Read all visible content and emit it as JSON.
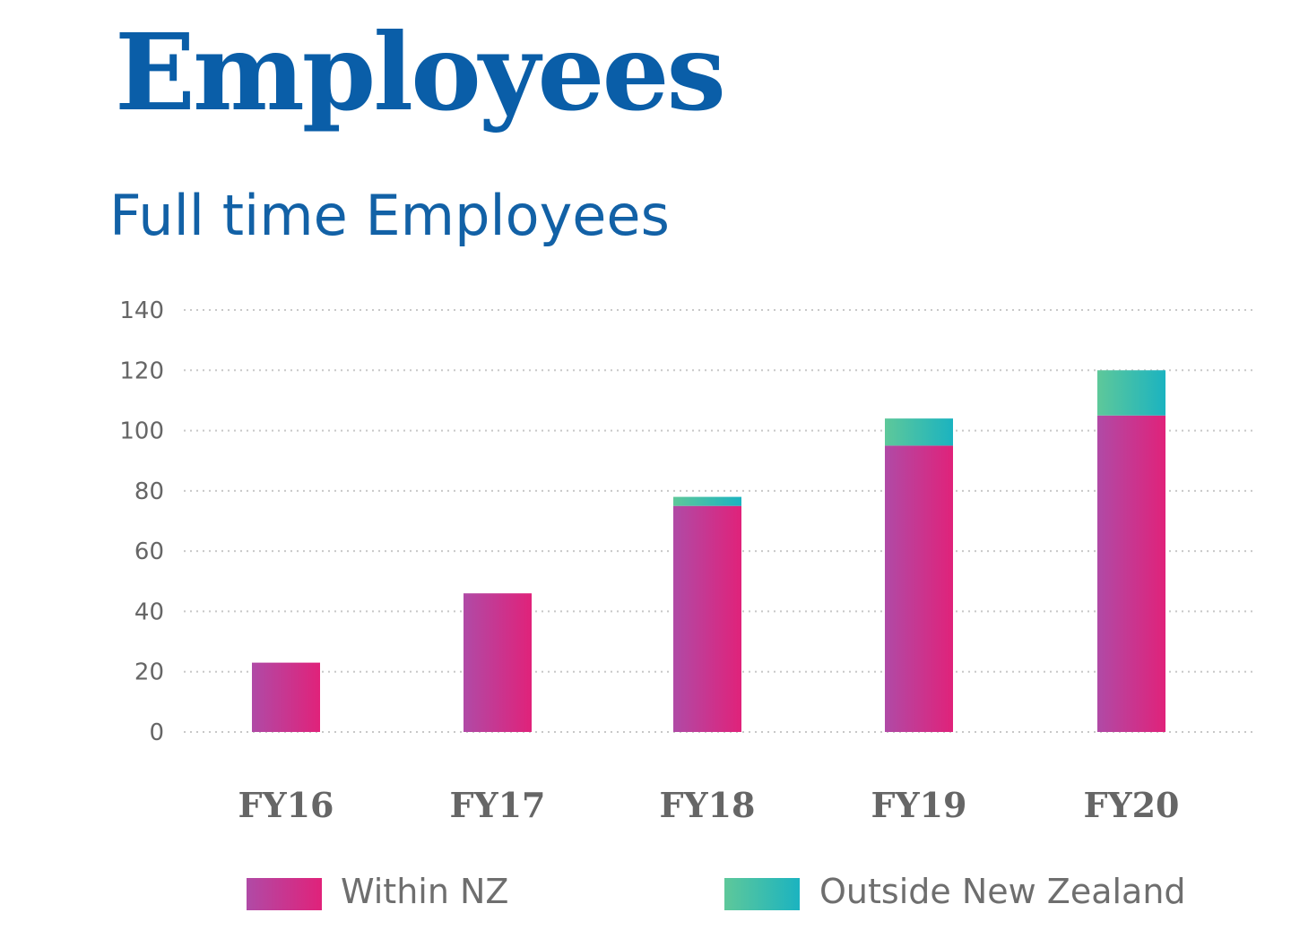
{
  "page": {
    "heading": "Employees",
    "subheading": "Full time Employees"
  },
  "colors": {
    "heading": "#0a5ea8",
    "subheading": "#1261a6",
    "within_nz": [
      "#b04aa6",
      "#e0227a"
    ],
    "outside_nz": [
      "#5ec89a",
      "#1bb3c0"
    ],
    "grid": "#c8c8c8",
    "axis_text": "#666666"
  },
  "chart_data": {
    "type": "bar",
    "stacked": true,
    "title": "Full time Employees",
    "xlabel": "",
    "ylabel": "",
    "categories": [
      "FY16",
      "FY17",
      "FY18",
      "FY19",
      "FY20"
    ],
    "series": [
      {
        "name": "Within NZ",
        "values": [
          23,
          46,
          75,
          95,
          105
        ]
      },
      {
        "name": "Outside New Zealand",
        "values": [
          0,
          0,
          3,
          9,
          15
        ]
      }
    ],
    "ylim": [
      0,
      140
    ],
    "yticks": [
      0,
      20,
      40,
      60,
      80,
      100,
      120,
      140
    ],
    "grid": true,
    "legend": "bottom"
  }
}
